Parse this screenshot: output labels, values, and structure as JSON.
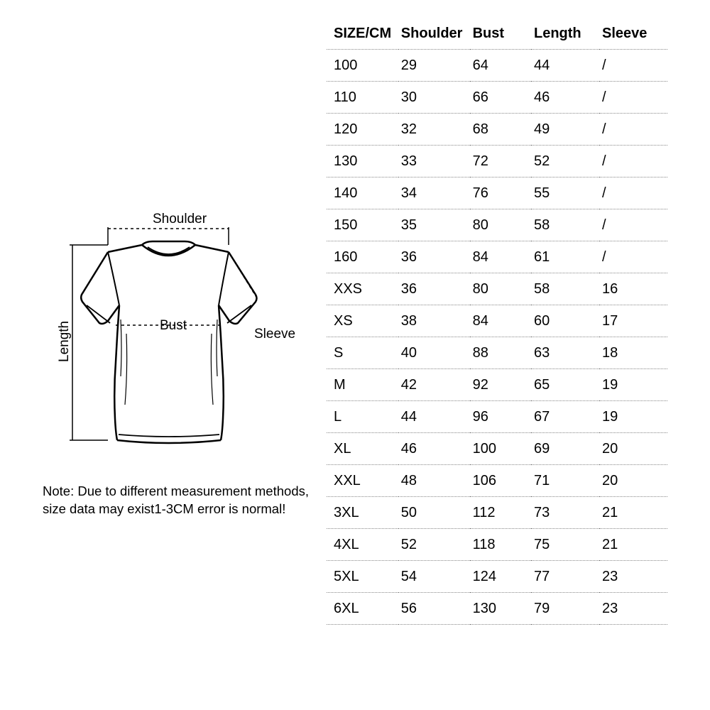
{
  "diagram": {
    "labels": {
      "shoulder": "Shoulder",
      "bust": "Bust",
      "sleeve": "Sleeve",
      "length": "Length"
    }
  },
  "note": "Note: Due to different measurement methods, size data may exist1-3CM error is normal!",
  "table": {
    "columns": [
      "SIZE/CM",
      "Shoulder",
      "Bust",
      "Length",
      "Sleeve"
    ],
    "rows": [
      [
        "100",
        "29",
        "64",
        "44",
        "/"
      ],
      [
        "110",
        "30",
        "66",
        "46",
        "/"
      ],
      [
        "120",
        "32",
        "68",
        "49",
        "/"
      ],
      [
        "130",
        "33",
        "72",
        "52",
        "/"
      ],
      [
        "140",
        "34",
        "76",
        "55",
        "/"
      ],
      [
        "150",
        "35",
        "80",
        "58",
        "/"
      ],
      [
        "160",
        "36",
        "84",
        "61",
        "/"
      ],
      [
        "XXS",
        "36",
        "80",
        "58",
        "16"
      ],
      [
        "XS",
        "38",
        "84",
        "60",
        "17"
      ],
      [
        "S",
        "40",
        "88",
        "63",
        "18"
      ],
      [
        "M",
        "42",
        "92",
        "65",
        "19"
      ],
      [
        "L",
        "44",
        "96",
        "67",
        "19"
      ],
      [
        "XL",
        "46",
        "100",
        "69",
        "20"
      ],
      [
        "XXL",
        "48",
        "106",
        "71",
        "20"
      ],
      [
        "3XL",
        "50",
        "112",
        "73",
        "21"
      ],
      [
        "4XL",
        "52",
        "118",
        "75",
        "21"
      ],
      [
        "5XL",
        "54",
        "124",
        "77",
        "23"
      ],
      [
        "6XL",
        "56",
        "130",
        "79",
        "23"
      ]
    ]
  },
  "style": {
    "text_color": "#000000",
    "background_color": "#ffffff",
    "border_color": "#888888",
    "header_fontsize": 20,
    "cell_fontsize": 20,
    "note_fontsize": 18.5
  }
}
